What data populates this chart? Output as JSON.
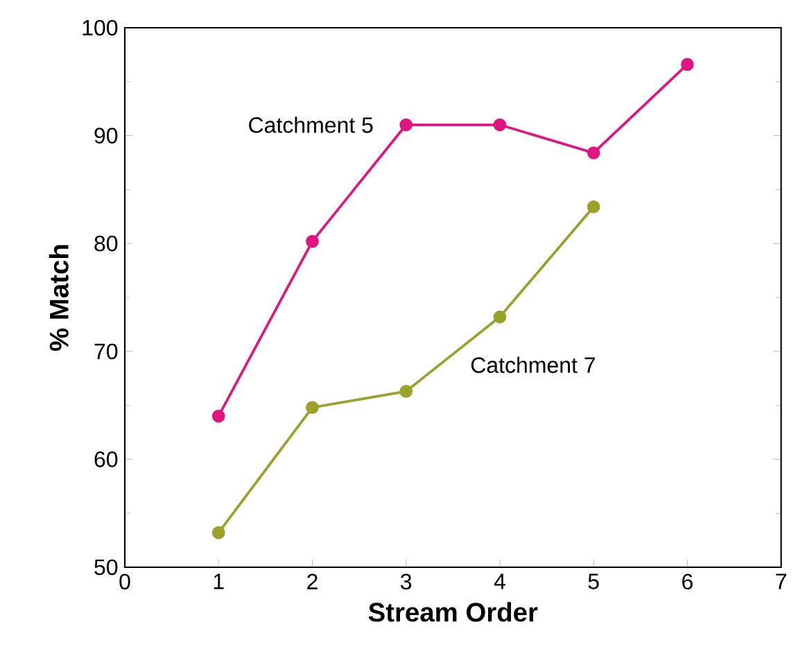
{
  "chart_data": {
    "type": "line",
    "xlabel": "Stream Order",
    "ylabel": "% Match",
    "xlim": [
      0,
      7
    ],
    "ylim": [
      50,
      100
    ],
    "xticks": [
      0,
      1,
      2,
      3,
      4,
      5,
      6,
      7
    ],
    "yticks": [
      50,
      60,
      70,
      80,
      90,
      100
    ],
    "marker": "circle",
    "grid": false,
    "legend": false,
    "series": [
      {
        "name": "Catchment 5",
        "color": "#e0157f",
        "x": [
          1,
          2,
          3,
          4,
          5,
          6
        ],
        "values": [
          64,
          80.2,
          91,
          91,
          88.4,
          96.6
        ]
      },
      {
        "name": "Catchment 7",
        "color": "#9aa22a",
        "x": [
          1,
          2,
          3,
          4,
          5
        ],
        "values": [
          53.2,
          64.8,
          66.3,
          73.2,
          83.4
        ]
      }
    ]
  }
}
